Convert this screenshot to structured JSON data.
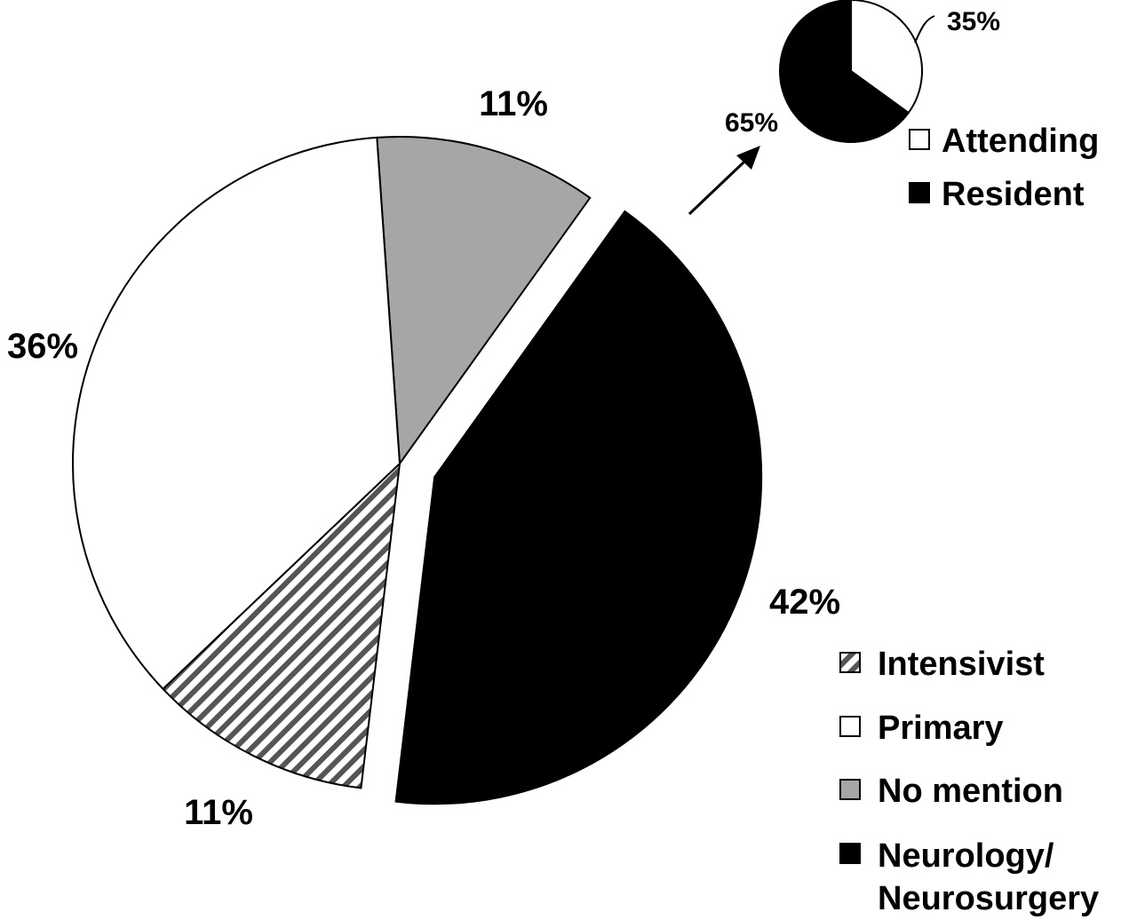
{
  "colors": {
    "stroke": "#000000",
    "primary": "#ffffff",
    "no_mention": "#a6a6a6",
    "neuro": "#000000",
    "hatch": "#555555",
    "attending": "#ffffff",
    "resident": "#000000"
  },
  "chart_data": [
    {
      "type": "pie",
      "slices": [
        {
          "label": "No mention",
          "value": 11,
          "pct_label": "11%",
          "fill": "solid-gray"
        },
        {
          "label": "Neurology/ Neurosurgery",
          "value": 42,
          "pct_label": "42%",
          "fill": "solid-black",
          "exploded": true
        },
        {
          "label": "Intensivist",
          "value": 11,
          "pct_label": "11%",
          "fill": "diagonal-hatch"
        },
        {
          "label": "Primary",
          "value": 36,
          "pct_label": "36%",
          "fill": "white"
        }
      ],
      "legend": {
        "placement": "bottom-right",
        "items": [
          {
            "key": "intensivist",
            "label": "Intensivist",
            "fill": "diagonal-hatch"
          },
          {
            "key": "primary",
            "label": "Primary",
            "fill": "white"
          },
          {
            "key": "no_mention",
            "label": "No mention",
            "fill": "solid-gray"
          },
          {
            "key": "neuro",
            "label_lines": [
              "Neurology/",
              "Neurosurgery"
            ],
            "fill": "solid-black"
          }
        ]
      }
    },
    {
      "type": "pie",
      "breakdown_of": "Neurology/ Neurosurgery",
      "slices": [
        {
          "label": "Attending",
          "value": 35,
          "pct_label": "35%",
          "fill": "white"
        },
        {
          "label": "Resident",
          "value": 65,
          "pct_label": "65%",
          "fill": "solid-black"
        }
      ],
      "legend": {
        "placement": "top-right",
        "items": [
          {
            "key": "attending",
            "label": "Attending",
            "fill": "white"
          },
          {
            "key": "resident",
            "label": "Resident",
            "fill": "solid-black"
          }
        ]
      }
    }
  ]
}
